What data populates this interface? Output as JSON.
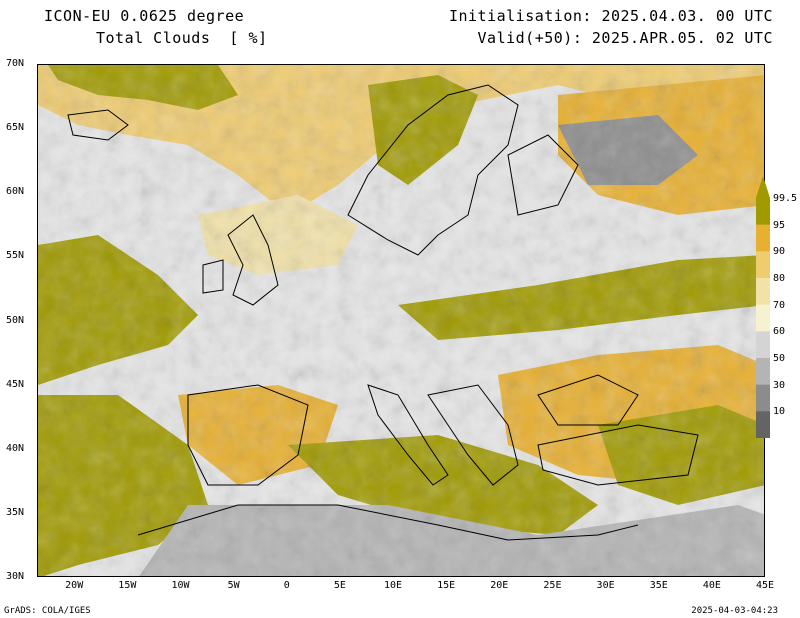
{
  "header": {
    "title_line1": "ICON-EU 0.0625 degree",
    "title_line2": "Total Clouds  [ %]",
    "init_line": "Initialisation: 2025.04.03. 00 UTC",
    "valid_line": "Valid(+50): 2025.APR.05. 02 UTC"
  },
  "axes": {
    "lat_labels": [
      "70N",
      "65N",
      "60N",
      "55N",
      "50N",
      "45N",
      "40N",
      "35N",
      "30N"
    ],
    "lat_values": [
      70,
      65,
      60,
      55,
      50,
      45,
      40,
      35,
      30
    ],
    "lon_labels": [
      "20W",
      "15W",
      "10W",
      "5W",
      "0",
      "5E",
      "10E",
      "15E",
      "20E",
      "25E",
      "30E",
      "35E",
      "40E",
      "45E"
    ],
    "lon_values": [
      -20,
      -15,
      -10,
      -5,
      0,
      5,
      10,
      15,
      20,
      25,
      30,
      35,
      40,
      45
    ],
    "lon_range": [
      -23.5,
      45
    ],
    "lat_range": [
      30,
      70
    ]
  },
  "legend": {
    "labels": [
      "99.5",
      "95",
      "90",
      "80",
      "70",
      "60",
      "50",
      "30",
      "10"
    ],
    "colors": [
      "#a09a00",
      "#e8b030",
      "#f0cc70",
      "#f2e2a8",
      "#f6f2d0",
      "#d4d4d4",
      "#b4b4b4",
      "#8c8c8c",
      "#646464"
    ]
  },
  "footer": {
    "left": "GrADS: COLA/IGES",
    "right": "2025-04-03-04:23"
  }
}
